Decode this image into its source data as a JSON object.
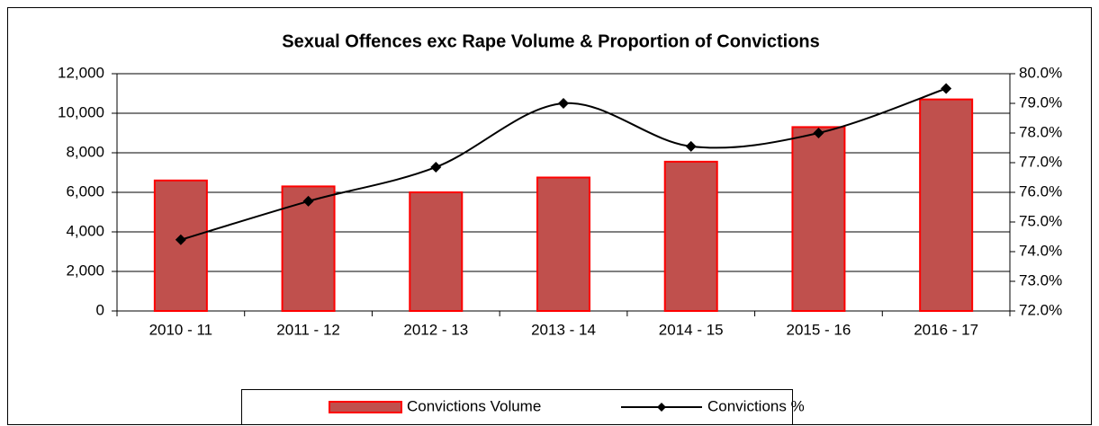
{
  "chart_data": {
    "type": "bar-line",
    "title": "Sexual Offences exc Rape Volume & Proportion of Convictions",
    "categories": [
      "2010 - 11",
      "2011 - 12",
      "2012 - 13",
      "2013 - 14",
      "2014 - 15",
      "2015 - 16",
      "2016 - 17"
    ],
    "series": [
      {
        "name": "Convictions Volume",
        "type": "bar",
        "color": "#c0504d",
        "edge": "#ff0000",
        "values": [
          6600,
          6300,
          6000,
          6750,
          7550,
          9300,
          10700
        ]
      },
      {
        "name": "Convictions %",
        "type": "line",
        "axis": "y2",
        "color": "#000000",
        "values": [
          74.4,
          75.7,
          76.85,
          79.0,
          77.55,
          78.0,
          79.5
        ]
      }
    ],
    "ylim": [
      0,
      12000
    ],
    "yticks": [
      0,
      {
        "value": 2000,
        "label": "2,000"
      },
      {
        "value": 4000,
        "label": "4,000"
      },
      {
        "value": 6000,
        "label": "6,000"
      },
      {
        "value": 8000,
        "label": "8,000"
      },
      {
        "value": 10000,
        "label": "10,000"
      },
      {
        "value": 12000,
        "label": "12,000"
      }
    ],
    "y2lim": [
      72,
      80
    ],
    "y2ticks": [
      {
        "value": 72,
        "label": "72.0%"
      },
      {
        "value": 73,
        "label": "73.0%"
      },
      {
        "value": 74,
        "label": "74.0%"
      },
      {
        "value": 75,
        "label": "75.0%"
      },
      {
        "value": 76,
        "label": "76.0%"
      },
      {
        "value": 77,
        "label": "77.0%"
      },
      {
        "value": 78,
        "label": "78.0%"
      },
      {
        "value": 79,
        "label": "79.0%"
      },
      {
        "value": 80,
        "label": "80.0%"
      }
    ],
    "grid": true,
    "legend": "bottom"
  }
}
